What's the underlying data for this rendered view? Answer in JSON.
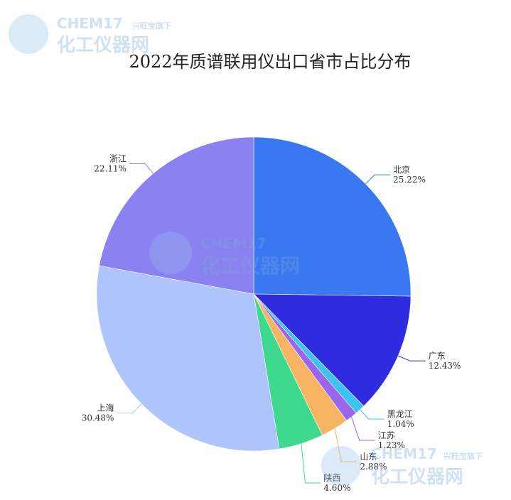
{
  "chart_data": {
    "type": "pie",
    "title": "2022年质谱联用仪出口省市占比分布",
    "categories": [
      "北京",
      "广东",
      "黑龙江",
      "江苏",
      "山东",
      "陕西",
      "上海",
      "浙江"
    ],
    "values": [
      25.22,
      12.43,
      1.04,
      1.23,
      2.88,
      4.6,
      30.48,
      22.11
    ],
    "value_labels": [
      "25.22%",
      "12.43%",
      "1.04%",
      "1.23%",
      "2.88%",
      "4.60%",
      "30.48%",
      "22.11%"
    ],
    "colors": [
      "#3a78f2",
      "#2f2ce0",
      "#3ec3f0",
      "#9a66f0",
      "#f7b462",
      "#3ed98e",
      "#aec4fa",
      "#8a82f0"
    ]
  },
  "watermark": {
    "brand": "CHEM17",
    "tagline": "兴旺宝旗下",
    "name": "化工仪器网"
  }
}
